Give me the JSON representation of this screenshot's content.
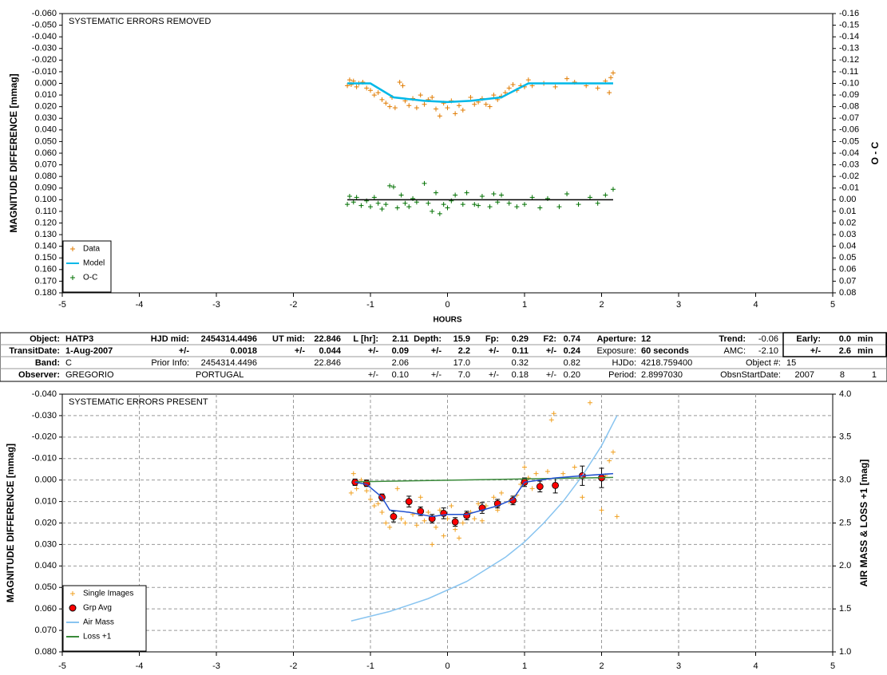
{
  "chart_data": [
    {
      "type": "scatter",
      "title": "SYSTEMATIC ERRORS REMOVED",
      "xlabel": "HOURS",
      "ylabel": "MAGNITUDE DIFFERENCE [mmag]",
      "y2label": "O - C",
      "xlim": [
        -5,
        5
      ],
      "xticks": [
        -5,
        -4,
        -3,
        -2,
        -1,
        0,
        1,
        2,
        3,
        4,
        5
      ],
      "ylim": [
        -0.06,
        0.18
      ],
      "y_reversed": true,
      "yticks": [
        {
          "value": -0.06,
          "label": "-0.060"
        },
        {
          "value": -0.05,
          "label": "-0.050"
        },
        {
          "value": -0.04,
          "label": "-0.040"
        },
        {
          "value": -0.03,
          "label": "-0.030"
        },
        {
          "value": -0.02,
          "label": "-0.020"
        },
        {
          "value": -0.01,
          "label": "-0.010"
        },
        {
          "value": 0,
          "label": "0.000"
        },
        {
          "value": 0.01,
          "label": "0.010"
        },
        {
          "value": 0.02,
          "label": "0.020"
        },
        {
          "value": 0.03,
          "label": "0.030"
        },
        {
          "value": 0.04,
          "label": "0.040"
        },
        {
          "value": 0.05,
          "label": "0.050"
        },
        {
          "value": 0.06,
          "label": "0.060"
        },
        {
          "value": 0.07,
          "label": "0.070"
        },
        {
          "value": 0.08,
          "label": "0.080"
        },
        {
          "value": 0.09,
          "label": "0.090"
        },
        {
          "value": 0.1,
          "label": "0.100"
        },
        {
          "value": 0.11,
          "label": "0.110"
        },
        {
          "value": 0.12,
          "label": "0.120"
        },
        {
          "value": 0.13,
          "label": "0.130"
        },
        {
          "value": 0.14,
          "label": "0.140"
        },
        {
          "value": 0.15,
          "label": "0.150"
        },
        {
          "value": 0.16,
          "label": "0.160"
        },
        {
          "value": 0.17,
          "label": "0.170"
        },
        {
          "value": 0.18,
          "label": "0.180"
        }
      ],
      "y2lim": [
        -0.16,
        0.08
      ],
      "y2_reversed": true,
      "y2ticks": [
        -0.16,
        -0.15,
        -0.14,
        -0.13,
        -0.12,
        -0.11,
        {
          "value": -0.1,
          "label": "-0.10"
        },
        -0.09,
        -0.08,
        -0.07,
        -0.06,
        -0.05,
        -0.04,
        -0.03,
        -0.02,
        -0.01,
        {
          "value": 0,
          "label": "0.00"
        },
        0.01,
        0.02,
        0.03,
        0.04,
        0.05,
        0.06,
        0.07,
        0.08
      ],
      "grid": false,
      "legend": "lower left",
      "series": [
        {
          "name": "Data",
          "color": "#e07b00",
          "marker": "+",
          "axis": "y",
          "x": [
            -1.3,
            -1.27,
            -1.25,
            -1.22,
            -1.18,
            -1.15,
            -1.1,
            -1.05,
            -1.0,
            -0.95,
            -0.9,
            -0.85,
            -0.8,
            -0.75,
            -0.72,
            -0.68,
            -0.62,
            -0.58,
            -0.55,
            -0.5,
            -0.45,
            -0.4,
            -0.35,
            -0.3,
            -0.25,
            -0.2,
            -0.15,
            -0.1,
            -0.05,
            0.0,
            0.05,
            0.1,
            0.15,
            0.2,
            0.3,
            0.35,
            0.4,
            0.45,
            0.5,
            0.55,
            0.6,
            0.65,
            0.7,
            0.75,
            0.8,
            0.85,
            0.9,
            0.95,
            1.0,
            1.05,
            1.1,
            1.25,
            1.4,
            1.55,
            1.65,
            1.8,
            1.95,
            2.05,
            2.1,
            2.12,
            2.15
          ],
          "values": [
            0.002,
            -0.003,
            0.001,
            -0.002,
            0.003,
            0.0,
            -0.001,
            0.004,
            0.006,
            0.01,
            0.008,
            0.014,
            0.017,
            0.02,
            0.012,
            0.021,
            -0.001,
            0.002,
            0.015,
            0.019,
            0.013,
            0.021,
            0.01,
            0.018,
            0.014,
            0.012,
            0.022,
            0.028,
            0.017,
            0.021,
            0.015,
            0.026,
            0.019,
            0.023,
            0.012,
            0.018,
            0.016,
            0.013,
            0.018,
            0.02,
            0.01,
            0.014,
            0.011,
            0.008,
            0.004,
            0.001,
            0.006,
            0.002,
            0.003,
            -0.003,
            0.002,
            0.0,
            0.003,
            -0.004,
            -0.001,
            0.002,
            0.004,
            -0.002,
            0.008,
            -0.005,
            -0.009
          ]
        },
        {
          "name": "Model",
          "color": "#00b8e8",
          "marker": "line",
          "axis": "y",
          "x": [
            -1.3,
            -1.0,
            -0.7,
            -0.3,
            0.0,
            0.3,
            0.7,
            1.05,
            2.15
          ],
          "values": [
            0.0,
            0.0,
            0.012,
            0.015,
            0.016,
            0.015,
            0.012,
            0.0,
            0.0
          ]
        },
        {
          "name": "O-C",
          "color": "#007000",
          "marker": "+",
          "axis": "y2",
          "x": [
            -1.3,
            -1.27,
            -1.22,
            -1.18,
            -1.12,
            -1.05,
            -1.0,
            -0.95,
            -0.9,
            -0.85,
            -0.8,
            -0.75,
            -0.7,
            -0.65,
            -0.6,
            -0.55,
            -0.5,
            -0.45,
            -0.4,
            -0.3,
            -0.25,
            -0.2,
            -0.15,
            -0.1,
            -0.05,
            0.0,
            0.05,
            0.1,
            0.2,
            0.25,
            0.35,
            0.4,
            0.45,
            0.55,
            0.6,
            0.65,
            0.7,
            0.8,
            0.9,
            1.0,
            1.1,
            1.2,
            1.3,
            1.45,
            1.55,
            1.7,
            1.85,
            1.95,
            2.05,
            2.15
          ],
          "values": [
            0.004,
            -0.003,
            0.002,
            -0.002,
            0.005,
            0.001,
            0.006,
            -0.002,
            0.003,
            0.008,
            0.004,
            -0.012,
            -0.011,
            0.007,
            -0.004,
            0.003,
            0.006,
            -0.001,
            0.002,
            -0.014,
            0.003,
            0.01,
            -0.006,
            0.012,
            0.004,
            0.007,
            0.001,
            -0.004,
            0.004,
            -0.006,
            0.004,
            0.005,
            -0.003,
            0.006,
            -0.005,
            0.002,
            -0.004,
            0.003,
            0.006,
            0.004,
            -0.002,
            0.007,
            -0.001,
            0.006,
            -0.005,
            0.004,
            -0.002,
            0.003,
            -0.004,
            -0.009
          ]
        },
        {
          "color": "#000000",
          "marker": "line",
          "axis": "y2",
          "x": [
            -1.3,
            2.15
          ],
          "values": [
            0,
            0
          ]
        }
      ]
    },
    {
      "type": "scatter",
      "title": "SYSTEMATIC ERRORS PRESENT",
      "ylabel": "MAGNITUDE DIFFERENCE [mmag]",
      "y2label": "AIR MASS & LOSS +1 [mag]",
      "xlim": [
        -5,
        5
      ],
      "xticks": [
        -5,
        -4,
        -3,
        -2,
        -1,
        0,
        1,
        2,
        3,
        4,
        5
      ],
      "ylim": [
        -0.04,
        0.08
      ],
      "y_reversed": true,
      "yticks": [
        {
          "value": -0.04,
          "label": "-0.040"
        },
        {
          "value": -0.03,
          "label": "-0.030"
        },
        {
          "value": -0.02,
          "label": "-0.020"
        },
        {
          "value": -0.01,
          "label": "-0.010"
        },
        {
          "value": 0,
          "label": "0.000"
        },
        {
          "value": 0.01,
          "label": "0.010"
        },
        {
          "value": 0.02,
          "label": "0.020"
        },
        {
          "value": 0.03,
          "label": "0.030"
        },
        {
          "value": 0.04,
          "label": "0.040"
        },
        {
          "value": 0.05,
          "label": "0.050"
        },
        {
          "value": 0.06,
          "label": "0.060"
        },
        {
          "value": 0.07,
          "label": "0.070"
        },
        {
          "value": 0.08,
          "label": "0.080"
        }
      ],
      "y2lim": [
        1.0,
        4.0
      ],
      "y2_reversed": false,
      "y2ticks": [
        {
          "value": 1,
          "label": "1.0"
        },
        1.5,
        {
          "value": 2,
          "label": "2.0"
        },
        2.5,
        {
          "value": 3,
          "label": "3.0"
        },
        3.5,
        {
          "value": 4,
          "label": "4.0"
        }
      ],
      "grid": true,
      "legend": "lower left",
      "series": [
        {
          "name": "Single Images",
          "color": "#f0a020",
          "marker": "+",
          "axis": "y",
          "x": [
            -1.25,
            -1.22,
            -1.18,
            -1.12,
            -1.05,
            -1.0,
            -0.95,
            -0.9,
            -0.85,
            -0.8,
            -0.75,
            -0.7,
            -0.65,
            -0.6,
            -0.55,
            -0.5,
            -0.45,
            -0.4,
            -0.35,
            -0.3,
            -0.25,
            -0.2,
            -0.15,
            -0.1,
            -0.05,
            0.0,
            0.05,
            0.1,
            0.15,
            0.2,
            0.3,
            0.35,
            0.4,
            0.45,
            0.5,
            0.6,
            0.65,
            0.7,
            0.8,
            0.9,
            0.95,
            1.0,
            1.05,
            1.1,
            1.15,
            1.2,
            1.3,
            1.35,
            1.38,
            1.5,
            1.65,
            1.75,
            1.85,
            2.0,
            2.05,
            2.1,
            2.15,
            2.2
          ],
          "values": [
            0.006,
            -0.003,
            0.004,
            0.0,
            0.005,
            0.009,
            0.012,
            0.011,
            0.015,
            0.02,
            0.022,
            0.016,
            0.004,
            0.018,
            0.02,
            0.011,
            0.016,
            0.021,
            0.008,
            0.019,
            0.015,
            0.03,
            0.022,
            0.014,
            0.026,
            0.018,
            0.012,
            0.023,
            0.027,
            0.02,
            0.015,
            0.018,
            0.011,
            0.019,
            0.012,
            0.008,
            0.014,
            0.006,
            0.01,
            0.007,
            0.002,
            -0.006,
            -0.001,
            0.004,
            -0.003,
            0.003,
            -0.004,
            -0.028,
            -0.031,
            -0.003,
            -0.006,
            0.008,
            -0.036,
            0.014,
            -0.002,
            -0.009,
            -0.013,
            0.017
          ]
        },
        {
          "name": "Grp Avg",
          "color": "#ff0000",
          "marker": "circle",
          "axis": "y",
          "x": [
            -1.2,
            -1.05,
            -0.85,
            -0.7,
            -0.5,
            -0.35,
            -0.2,
            -0.05,
            0.1,
            0.25,
            0.45,
            0.65,
            0.85,
            1.0,
            1.2,
            1.4,
            1.75,
            2.0
          ],
          "values": [
            0.001,
            0.0015,
            0.008,
            0.017,
            0.01,
            0.0145,
            0.018,
            0.0155,
            0.0195,
            0.0165,
            0.013,
            0.011,
            0.0095,
            0.001,
            0.003,
            0.0025,
            -0.002,
            -0.001
          ],
          "errors": [
            0.0015,
            0.0015,
            0.0015,
            0.0025,
            0.0025,
            0.002,
            0.002,
            0.0025,
            0.002,
            0.002,
            0.0025,
            0.002,
            0.002,
            0.002,
            0.0025,
            0.0035,
            0.0045,
            0.0045
          ]
        },
        {
          "name": "Air Mass",
          "color": "#88c4f0",
          "marker": "line",
          "axis": "y2",
          "x": [
            -1.25,
            -0.75,
            -0.25,
            0.25,
            0.75,
            1.0,
            1.25,
            1.5,
            1.75,
            2.0,
            2.2
          ],
          "values": [
            1.36,
            1.47,
            1.62,
            1.82,
            2.1,
            2.28,
            2.5,
            2.75,
            3.05,
            3.4,
            3.75
          ]
        },
        {
          "name": "Loss +1",
          "color": "#3a8a3a",
          "marker": "line",
          "axis": "y2",
          "x": [
            -1.2,
            2.15
          ],
          "values": [
            2.98,
            3.03
          ]
        },
        {
          "color": "#2050d0",
          "marker": "line",
          "axis": "y",
          "x": [
            -1.2,
            -1.05,
            -0.85,
            -0.75,
            -0.5,
            -0.2,
            0.0,
            0.25,
            0.65,
            0.85,
            1.0,
            1.4,
            1.75,
            2.15
          ],
          "values": [
            0.001,
            0.002,
            0.008,
            0.014,
            0.015,
            0.017,
            0.016,
            0.016,
            0.012,
            0.009,
            0.001,
            -0.001,
            -0.002,
            -0.003
          ]
        }
      ]
    }
  ],
  "table": {
    "rows": [
      [
        "Object:",
        "HATP3",
        "HJD mid:",
        "2454314.4496",
        "UT mid:",
        "22.846",
        "L [hr]:",
        "2.11",
        "Depth:",
        "15.9",
        "Fp:",
        "0.29",
        "F2:",
        "0.74",
        "Aperture:",
        "12",
        "Trend:",
        "-0.06",
        "Early:",
        "0.0",
        "min"
      ],
      [
        "TransitDate:",
        "1-Aug-2007",
        "+/-",
        "0.0018",
        "+/-",
        "0.044",
        "+/-",
        "0.09",
        "+/-",
        "2.2",
        "+/-",
        "0.11",
        "+/-",
        "0.24",
        "Exposure:",
        "60 seconds",
        "AMC:",
        "-2.10",
        "+/-",
        "2.6",
        "min"
      ],
      [
        "Band:",
        "C",
        "Prior Info:",
        "2454314.4496",
        "22.846",
        "2.06",
        "17.0",
        "0.32",
        "0.82",
        "HJDo:",
        "4218.759400",
        "Object #:",
        "15"
      ],
      [
        "Observer:",
        "GREGORIO",
        "PORTUGAL",
        "+/-",
        "0.10",
        "+/-",
        "7.0",
        "+/-",
        "0.18",
        "+/-",
        "0.20",
        "Period:",
        "2.8997030",
        "ObsnStartDate:",
        "2007",
        "8",
        "1"
      ]
    ]
  }
}
